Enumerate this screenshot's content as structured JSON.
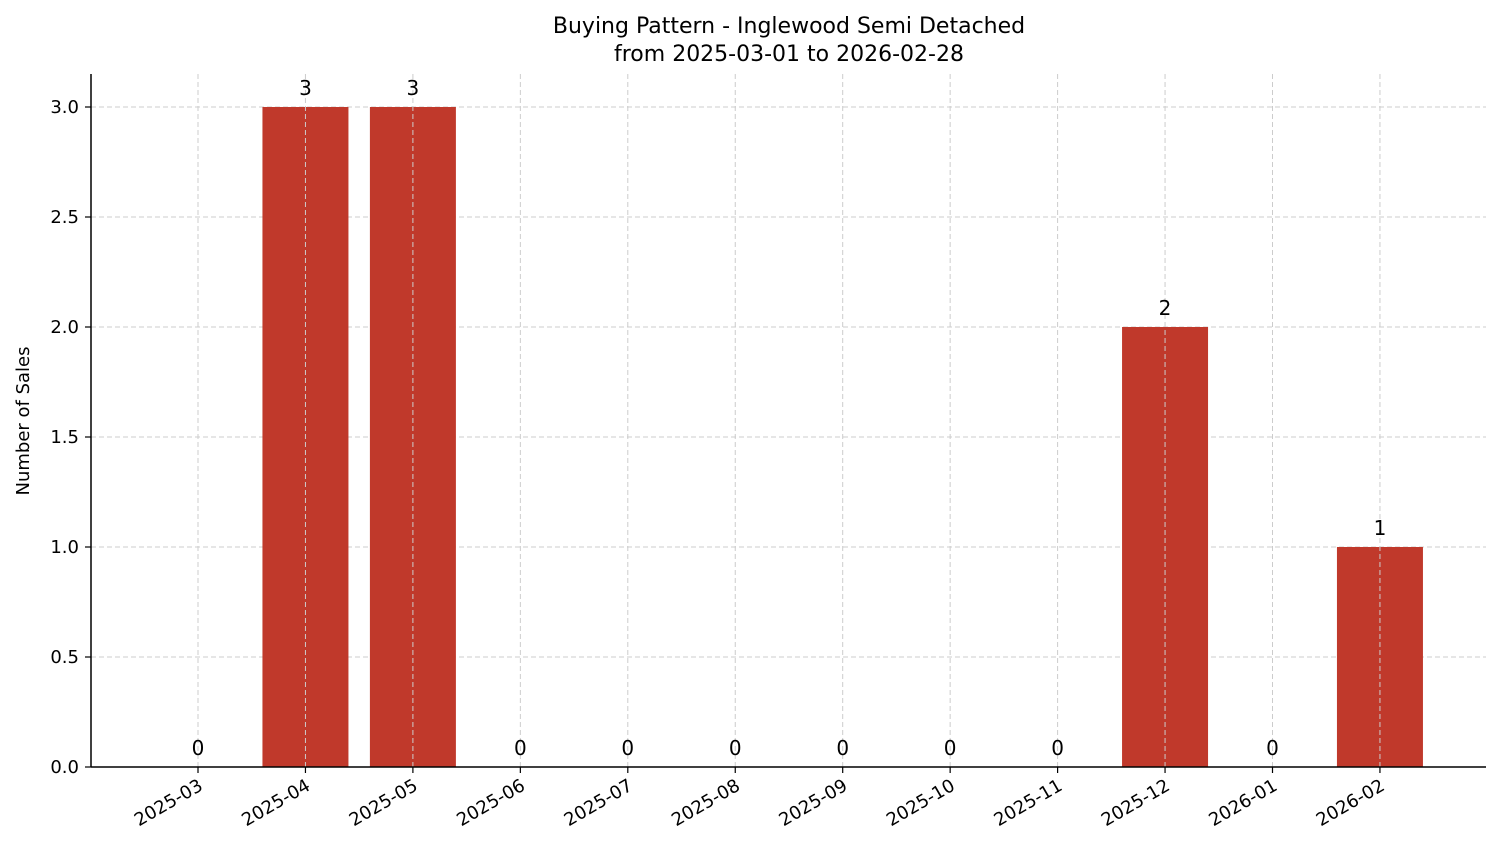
{
  "chart_data": {
    "type": "bar",
    "title": "Buying Pattern - Inglewood Semi Detached",
    "subtitle": "from 2025-03-01 to 2026-02-28",
    "xlabel": "",
    "ylabel": "Number of Sales",
    "categories": [
      "2025-03",
      "2025-04",
      "2025-05",
      "2025-06",
      "2025-07",
      "2025-08",
      "2025-09",
      "2025-10",
      "2025-11",
      "2025-12",
      "2026-01",
      "2026-02"
    ],
    "values": [
      0,
      3,
      3,
      0,
      0,
      0,
      0,
      0,
      0,
      2,
      0,
      1
    ],
    "data_labels": [
      "0",
      "3",
      "3",
      "0",
      "0",
      "0",
      "0",
      "0",
      "0",
      "2",
      "0",
      "1"
    ],
    "yticks": [
      0.0,
      0.5,
      1.0,
      1.5,
      2.0,
      2.5,
      3.0
    ],
    "ytick_labels": [
      "0.0",
      "0.5",
      "1.0",
      "1.5",
      "2.0",
      "2.5",
      "3.0"
    ],
    "ylim": [
      0,
      3.15
    ],
    "grid": true,
    "bar_color": "#c0392b",
    "legend": "none"
  }
}
